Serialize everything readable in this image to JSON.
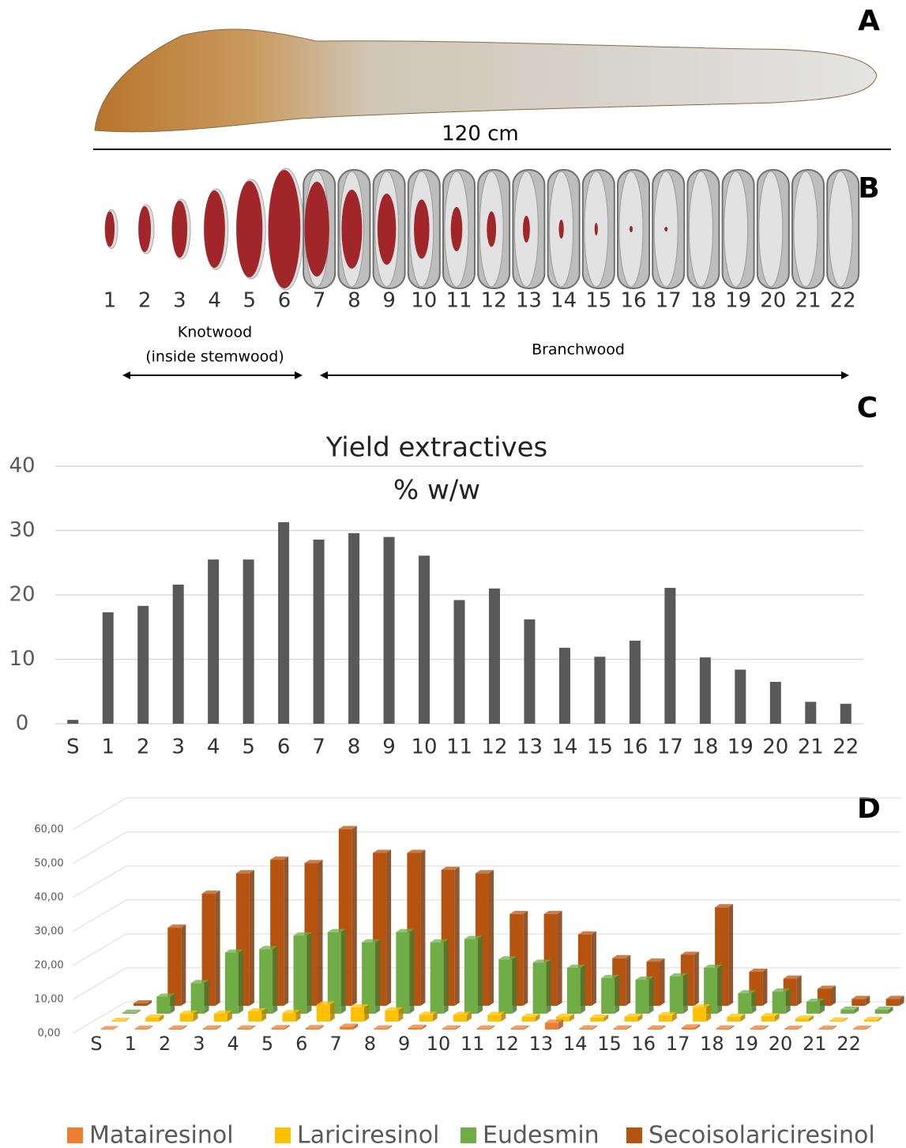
{
  "figure": {
    "panel_labels": [
      "A",
      "B",
      "C",
      "D"
    ],
    "length_label": "120 cm",
    "disc_labels": [
      "1",
      "2",
      "3",
      "4",
      "5",
      "6",
      "7",
      "8",
      "9",
      "10",
      "11",
      "12",
      "13",
      "14",
      "15",
      "16",
      "17",
      "18",
      "19",
      "20",
      "21",
      "22"
    ],
    "knotwood_label": [
      "Knotwood",
      "(inside stemwood)"
    ],
    "branchwood_label": "Branchwood"
  },
  "chart_data": [
    {
      "type": "bar",
      "title": "Yield extractives",
      "subtitle": "% w/w",
      "categories": [
        "S",
        "1",
        "2",
        "3",
        "4",
        "5",
        "6",
        "7",
        "8",
        "9",
        "10",
        "11",
        "12",
        "13",
        "14",
        "15",
        "16",
        "17",
        "18",
        "19",
        "20",
        "21",
        "22"
      ],
      "values": [
        0.6,
        17.3,
        18.3,
        21.6,
        25.5,
        25.5,
        31.3,
        28.6,
        29.6,
        29,
        26.1,
        19.2,
        21,
        16.2,
        11.8,
        10.4,
        12.9,
        21.1,
        10.3,
        8.4,
        6.5,
        3.4,
        3.1
      ],
      "color": "#595959",
      "ylim": [
        0,
        40
      ],
      "yticks": [
        0,
        10,
        20,
        30,
        40
      ],
      "grid": true
    },
    {
      "type": "bar3d",
      "categories": [
        "S",
        "1",
        "2",
        "3",
        "4",
        "5",
        "6",
        "7",
        "8",
        "9",
        "10",
        "11",
        "12",
        "13",
        "14",
        "15",
        "16",
        "17",
        "18",
        "19",
        "20",
        "21",
        "22"
      ],
      "series": [
        {
          "name": "Matairesinol",
          "color": "#ED7D31",
          "values": [
            0.1,
            0.2,
            0.3,
            0.3,
            0.3,
            0.4,
            0.4,
            0.8,
            0.3,
            0.5,
            0.3,
            0.3,
            0.3,
            2,
            0.3,
            0.3,
            0.3,
            0.6,
            0.3,
            0.3,
            0.2,
            0.2,
            0.2
          ]
        },
        {
          "name": "Lariciresinol",
          "color": "#FFC000",
          "values": [
            0.2,
            1.2,
            2.3,
            2.3,
            3,
            2.5,
            5,
            4.2,
            3.3,
            2,
            2,
            2,
            1.4,
            1.4,
            1.2,
            1.4,
            1.9,
            4.2,
            1.4,
            1.6,
            0.9,
            0.3,
            0.5
          ]
        },
        {
          "name": "Eudesmin",
          "color": "#70AD47",
          "values": [
            0.3,
            5,
            9,
            18,
            19,
            23,
            24,
            21,
            24,
            21,
            22,
            16,
            15,
            13.5,
            10.5,
            10,
            11,
            13.5,
            6,
            6.5,
            3.5,
            1.2,
            1.2
          ]
        },
        {
          "name": "Secoisolariciresinol",
          "color": "#B5530F",
          "values": [
            0.7,
            23,
            33,
            39,
            43,
            42,
            52,
            45,
            45,
            40,
            39,
            27,
            27,
            21,
            14,
            13,
            15,
            29,
            10,
            8,
            5,
            2,
            2
          ]
        }
      ],
      "ylim": [
        0,
        60
      ],
      "yticks": [
        {
          "value": 0,
          "label": "0,00"
        },
        {
          "value": 10,
          "label": "10,00"
        },
        {
          "value": 20,
          "label": "20,00"
        },
        {
          "value": 30,
          "label": "30,00"
        },
        {
          "value": 40,
          "label": "40,00"
        },
        {
          "value": 50,
          "label": "50,00"
        },
        {
          "value": 60,
          "label": "60,00"
        }
      ],
      "grid": true,
      "legend": "bottom"
    }
  ]
}
